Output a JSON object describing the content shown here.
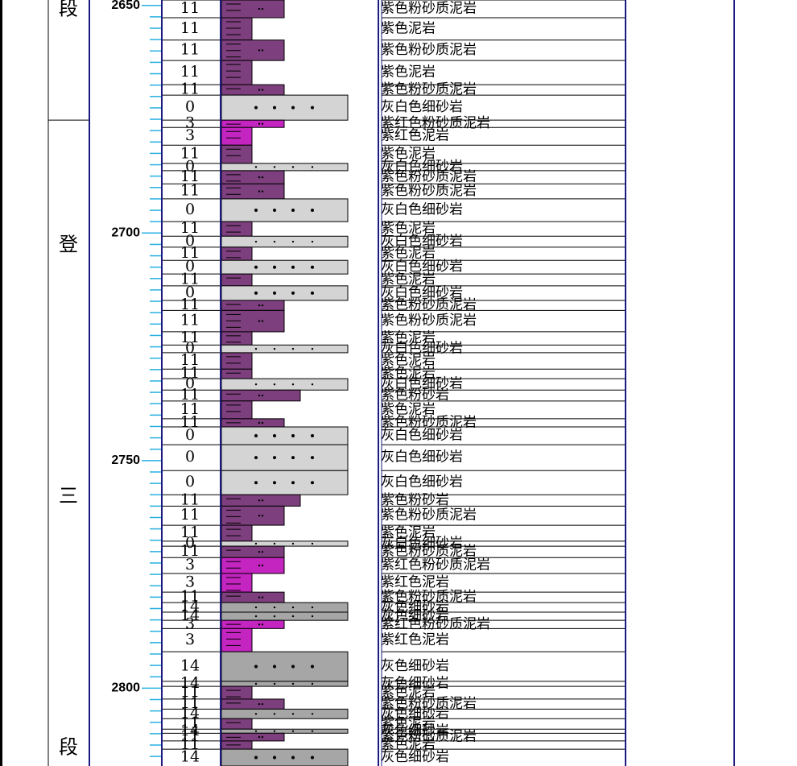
{
  "depth_axis": {
    "range": [
      2648.8,
      2817.1
    ],
    "ticks": [
      2650,
      2700,
      2750,
      2800
    ],
    "minor_ticks": [
      2652.5,
      2655,
      2657.5,
      2660,
      2662.5,
      2665,
      2667.5,
      2670,
      2672.5,
      2675,
      2677.5,
      2680,
      2682.5,
      2685,
      2687.5,
      2690,
      2692.5,
      2695,
      2697.5,
      2702.5,
      2705,
      2707.5,
      2710,
      2712.5,
      2715,
      2717.5,
      2720,
      2722.5,
      2725,
      2727.5,
      2730,
      2732.5,
      2735,
      2737.5,
      2740,
      2742.5,
      2745,
      2747.5,
      2752.5,
      2755,
      2757.5,
      2760,
      2762.5,
      2765,
      2767.5,
      2770,
      2772.5,
      2775,
      2777.5,
      2780,
      2782.5,
      2785,
      2787.5,
      2790,
      2792.5,
      2795,
      2797.5,
      2802.5,
      2805,
      2807.5,
      2810,
      2812.5,
      2815
    ]
  },
  "formations": [
    {
      "chars": [
        "段"
      ],
      "top": 2648.8,
      "bottom": 2675.2
    },
    {
      "chars": [
        "登",
        "三",
        "段"
      ],
      "top": 2675.2,
      "bottom": 2817.1
    }
  ],
  "layers": [
    {
      "top": 2648.8,
      "bottom": 2652.7,
      "code": 11,
      "lithology": "紫色粉砂质泥岩",
      "color": "#7d3f7d"
    },
    {
      "top": 2652.7,
      "bottom": 2657.6,
      "code": 11,
      "lithology": "紫色泥岩",
      "color": "#7d3f7d"
    },
    {
      "top": 2657.6,
      "bottom": 2662.1,
      "code": 11,
      "lithology": "紫色粉砂质泥岩",
      "color": "#7d3f7d"
    },
    {
      "top": 2662.1,
      "bottom": 2667.4,
      "code": 11,
      "lithology": "紫色泥岩",
      "color": "#7d3f7d"
    },
    {
      "top": 2667.4,
      "bottom": 2669.7,
      "code": 11,
      "lithology": "紫色粉砂质泥岩",
      "color": "#7d3f7d"
    },
    {
      "top": 2669.7,
      "bottom": 2675.2,
      "code": 0,
      "lithology": "灰白色细砂岩",
      "color": "#d4d4d4"
    },
    {
      "top": 2675.2,
      "bottom": 2676.8,
      "code": 3,
      "lithology": "紫红色粉砂质泥岩",
      "color": "#c424c0"
    },
    {
      "top": 2676.8,
      "bottom": 2680.7,
      "code": 3,
      "lithology": "紫红色泥岩",
      "color": "#c424c0"
    },
    {
      "top": 2680.7,
      "bottom": 2684.7,
      "code": 11,
      "lithology": "紫色泥岩",
      "color": "#7d3f7d"
    },
    {
      "top": 2684.7,
      "bottom": 2686.3,
      "code": 0,
      "lithology": "灰白色细砂岩",
      "color": "#d4d4d4"
    },
    {
      "top": 2686.3,
      "bottom": 2689.2,
      "code": 11,
      "lithology": "紫色粉砂质泥岩",
      "color": "#7d3f7d"
    },
    {
      "top": 2689.2,
      "bottom": 2692.5,
      "code": 11,
      "lithology": "紫色粉砂质泥岩",
      "color": "#7d3f7d"
    },
    {
      "top": 2692.5,
      "bottom": 2697.5,
      "code": 0,
      "lithology": "灰白色细砂岩",
      "color": "#d4d4d4"
    },
    {
      "top": 2697.5,
      "bottom": 2700.7,
      "code": 11,
      "lithology": "紫色泥岩",
      "color": "#7d3f7d"
    },
    {
      "top": 2700.7,
      "bottom": 2703.1,
      "code": 0,
      "lithology": "灰白色细砂岩",
      "color": "#d4d4d4"
    },
    {
      "top": 2703.1,
      "bottom": 2706.0,
      "code": 11,
      "lithology": "紫色泥岩",
      "color": "#7d3f7d"
    },
    {
      "top": 2706.0,
      "bottom": 2709.0,
      "code": 0,
      "lithology": "灰白色细砂岩",
      "color": "#d4d4d4"
    },
    {
      "top": 2709.0,
      "bottom": 2711.6,
      "code": 11,
      "lithology": "紫色泥岩",
      "color": "#7d3f7d"
    },
    {
      "top": 2711.6,
      "bottom": 2714.8,
      "code": 0,
      "lithology": "灰白色细砂岩",
      "color": "#d4d4d4"
    },
    {
      "top": 2714.8,
      "bottom": 2717.0,
      "code": 11,
      "lithology": "紫色粉砂质泥岩",
      "color": "#7d3f7d"
    },
    {
      "top": 2717.0,
      "bottom": 2721.7,
      "code": 11,
      "lithology": "紫色粉砂质泥岩",
      "color": "#7d3f7d"
    },
    {
      "top": 2721.7,
      "bottom": 2724.6,
      "code": 11,
      "lithology": "紫色泥岩",
      "color": "#7d3f7d"
    },
    {
      "top": 2724.6,
      "bottom": 2726.3,
      "code": 0,
      "lithology": "灰白色细砂岩",
      "color": "#d4d4d4"
    },
    {
      "top": 2726.3,
      "bottom": 2729.9,
      "code": 11,
      "lithology": "紫色泥岩",
      "color": "#7d3f7d"
    },
    {
      "top": 2729.9,
      "bottom": 2732.0,
      "code": 11,
      "lithology": "紫色泥岩",
      "color": "#7d3f7d"
    },
    {
      "top": 2732.0,
      "bottom": 2734.5,
      "code": 0,
      "lithology": "灰白色细砂岩",
      "color": "#d4d4d4"
    },
    {
      "top": 2734.5,
      "bottom": 2736.9,
      "code": 11,
      "lithology": "紫色粉砂岩",
      "color": "#7d3f7d"
    },
    {
      "top": 2736.9,
      "bottom": 2740.8,
      "code": 11,
      "lithology": "紫色泥岩",
      "color": "#7d3f7d"
    },
    {
      "top": 2740.8,
      "bottom": 2742.6,
      "code": 11,
      "lithology": "紫色粉砂质泥岩",
      "color": "#7d3f7d"
    },
    {
      "top": 2742.6,
      "bottom": 2746.5,
      "code": 0,
      "lithology": "灰白色细砂岩",
      "color": "#d4d4d4"
    },
    {
      "top": 2746.5,
      "bottom": 2752.2,
      "code": 0,
      "lithology": "灰白色细砂岩",
      "color": "#d4d4d4"
    },
    {
      "top": 2752.2,
      "bottom": 2757.5,
      "code": 0,
      "lithology": "灰白色细砂岩",
      "color": "#d4d4d4"
    },
    {
      "top": 2757.5,
      "bottom": 2760.0,
      "code": 11,
      "lithology": "紫色粉砂岩",
      "color": "#7d3f7d"
    },
    {
      "top": 2760.0,
      "bottom": 2764.2,
      "code": 11,
      "lithology": "紫色粉砂质泥岩",
      "color": "#7d3f7d"
    },
    {
      "top": 2764.2,
      "bottom": 2767.7,
      "code": 11,
      "lithology": "紫色泥岩",
      "color": "#7d3f7d"
    },
    {
      "top": 2767.7,
      "bottom": 2768.8,
      "code": 0,
      "lithology": "灰白色细砂岩",
      "color": "#d4d4d4"
    },
    {
      "top": 2768.8,
      "bottom": 2771.3,
      "code": 11,
      "lithology": "紫色粉砂质泥岩",
      "color": "#7d3f7d"
    },
    {
      "top": 2771.3,
      "bottom": 2774.8,
      "code": 3,
      "lithology": "紫红色粉砂质泥岩",
      "color": "#c424c0"
    },
    {
      "top": 2774.8,
      "bottom": 2778.9,
      "code": 3,
      "lithology": "紫红色泥岩",
      "color": "#c424c0"
    },
    {
      "top": 2778.9,
      "bottom": 2781.2,
      "code": 11,
      "lithology": "紫色粉砂质泥岩",
      "color": "#7d3f7d"
    },
    {
      "top": 2781.2,
      "bottom": 2783.3,
      "code": 14,
      "lithology": "灰色细砂岩",
      "color": "#a6a6a6"
    },
    {
      "top": 2783.3,
      "bottom": 2785.1,
      "code": 14,
      "lithology": "灰色细砂岩",
      "color": "#a6a6a6"
    },
    {
      "top": 2785.1,
      "bottom": 2786.9,
      "code": 3,
      "lithology": "紫红色粉砂质泥岩",
      "color": "#c424c0"
    },
    {
      "top": 2786.9,
      "bottom": 2792.0,
      "code": 3,
      "lithology": "紫红色泥岩",
      "color": "#c424c0"
    },
    {
      "top": 2792.0,
      "bottom": 2798.5,
      "code": 14,
      "lithology": "灰色细砂岩",
      "color": "#a6a6a6"
    },
    {
      "top": 2798.5,
      "bottom": 2799.6,
      "code": 14,
      "lithology": "灰色细砂岩",
      "color": "#a6a6a6"
    },
    {
      "top": 2799.6,
      "bottom": 2802.4,
      "code": 11,
      "lithology": "紫色泥岩",
      "color": "#7d3f7d"
    },
    {
      "top": 2802.4,
      "bottom": 2804.6,
      "code": 11,
      "lithology": "紫色粉砂质泥岩",
      "color": "#7d3f7d"
    },
    {
      "top": 2804.6,
      "bottom": 2806.7,
      "code": 14,
      "lithology": "灰色细砂岩",
      "color": "#a6a6a6"
    },
    {
      "top": 2806.7,
      "bottom": 2809.0,
      "code": 11,
      "lithology": "紫色泥岩",
      "color": "#7d3f7d"
    },
    {
      "top": 2809.0,
      "bottom": 2809.9,
      "code": 14,
      "lithology": "灰色细砂岩",
      "color": "#a6a6a6"
    },
    {
      "top": 2809.9,
      "bottom": 2811.6,
      "code": 11,
      "lithology": "紫色粉砂质泥岩",
      "color": "#7d3f7d"
    },
    {
      "top": 2811.6,
      "bottom": 2813.4,
      "code": 11,
      "lithology": "紫色泥岩",
      "color": "#7d3f7d"
    },
    {
      "top": 2813.4,
      "bottom": 2817.1,
      "code": 14,
      "lithology": "灰色细砂岩",
      "color": "#a6a6a6"
    }
  ]
}
